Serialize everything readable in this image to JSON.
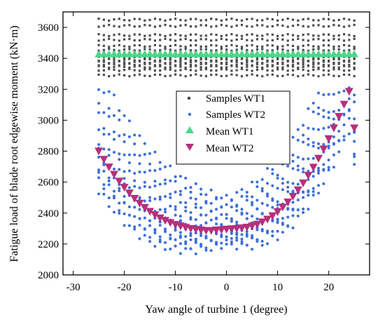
{
  "chart_data": {
    "type": "scatter",
    "title": "",
    "xlabel": "Yaw angle of turbine 1 (degree)",
    "ylabel": "Fatigue load of blade root edgewise moment (kN·m)",
    "xlim": [
      -32,
      28
    ],
    "ylim": [
      2000,
      3700
    ],
    "xticks": [
      -30,
      -20,
      -10,
      0,
      10,
      20
    ],
    "yticks": [
      2000,
      2200,
      2400,
      2600,
      2800,
      3000,
      3200,
      3400,
      3600
    ],
    "grid": false,
    "legend_position": "center-right",
    "colors": {
      "samples_wt1": "#4d4d4d",
      "samples_wt2": "#3d6fdb",
      "mean_wt1": "#4fd68b",
      "mean_wt2": "#b5307a"
    },
    "series": [
      {
        "name": "Samples WT1",
        "marker": "square",
        "level_rows": [
          3650,
          3610,
          3550,
          3520,
          3480,
          3455,
          3440,
          3420,
          3405,
          3390,
          3375,
          3360,
          3345,
          3325,
          3290
        ]
      },
      {
        "name": "Samples WT2",
        "marker": "dot",
        "offset_curves": [
          -160,
          -120,
          -90,
          -60,
          -30,
          0,
          40,
          90,
          140,
          200,
          260,
          330
        ]
      },
      {
        "name": "Mean WT1",
        "marker": "triangle-up",
        "y": 3425
      },
      {
        "name": "Mean WT2",
        "marker": "triangle-down",
        "points": [
          [
            -25,
            2800
          ],
          [
            -24,
            2747
          ],
          [
            -23,
            2697
          ],
          [
            -22,
            2650
          ],
          [
            -21,
            2606
          ],
          [
            -20,
            2566
          ],
          [
            -19,
            2529
          ],
          [
            -18,
            2494
          ],
          [
            -17,
            2463
          ],
          [
            -16,
            2435
          ],
          [
            -15,
            2410
          ],
          [
            -14,
            2388
          ],
          [
            -13,
            2368
          ],
          [
            -12,
            2352
          ],
          [
            -11,
            2338
          ],
          [
            -10,
            2326
          ],
          [
            -9,
            2316
          ],
          [
            -8,
            2307
          ],
          [
            -7,
            2300
          ],
          [
            -6,
            2294
          ],
          [
            -5,
            2290
          ],
          [
            -4,
            2287
          ],
          [
            -3,
            2287
          ],
          [
            -2,
            2290
          ],
          [
            -1,
            2292
          ],
          [
            0,
            2295
          ],
          [
            1,
            2298
          ],
          [
            2,
            2300
          ],
          [
            3,
            2303
          ],
          [
            4,
            2308
          ],
          [
            5,
            2316
          ],
          [
            6,
            2327
          ],
          [
            7,
            2342
          ],
          [
            8,
            2360
          ],
          [
            9,
            2382
          ],
          [
            10,
            2408
          ],
          [
            11,
            2438
          ],
          [
            12,
            2471
          ],
          [
            13,
            2508
          ],
          [
            14,
            2549
          ],
          [
            15,
            2594
          ],
          [
            16,
            2643
          ],
          [
            17,
            2696
          ],
          [
            18,
            2753
          ],
          [
            19,
            2814
          ],
          [
            20,
            2880
          ],
          [
            21,
            2950
          ],
          [
            22,
            3024
          ],
          [
            23,
            3103
          ],
          [
            24,
            3186
          ],
          [
            25,
            2950
          ]
        ]
      }
    ]
  }
}
